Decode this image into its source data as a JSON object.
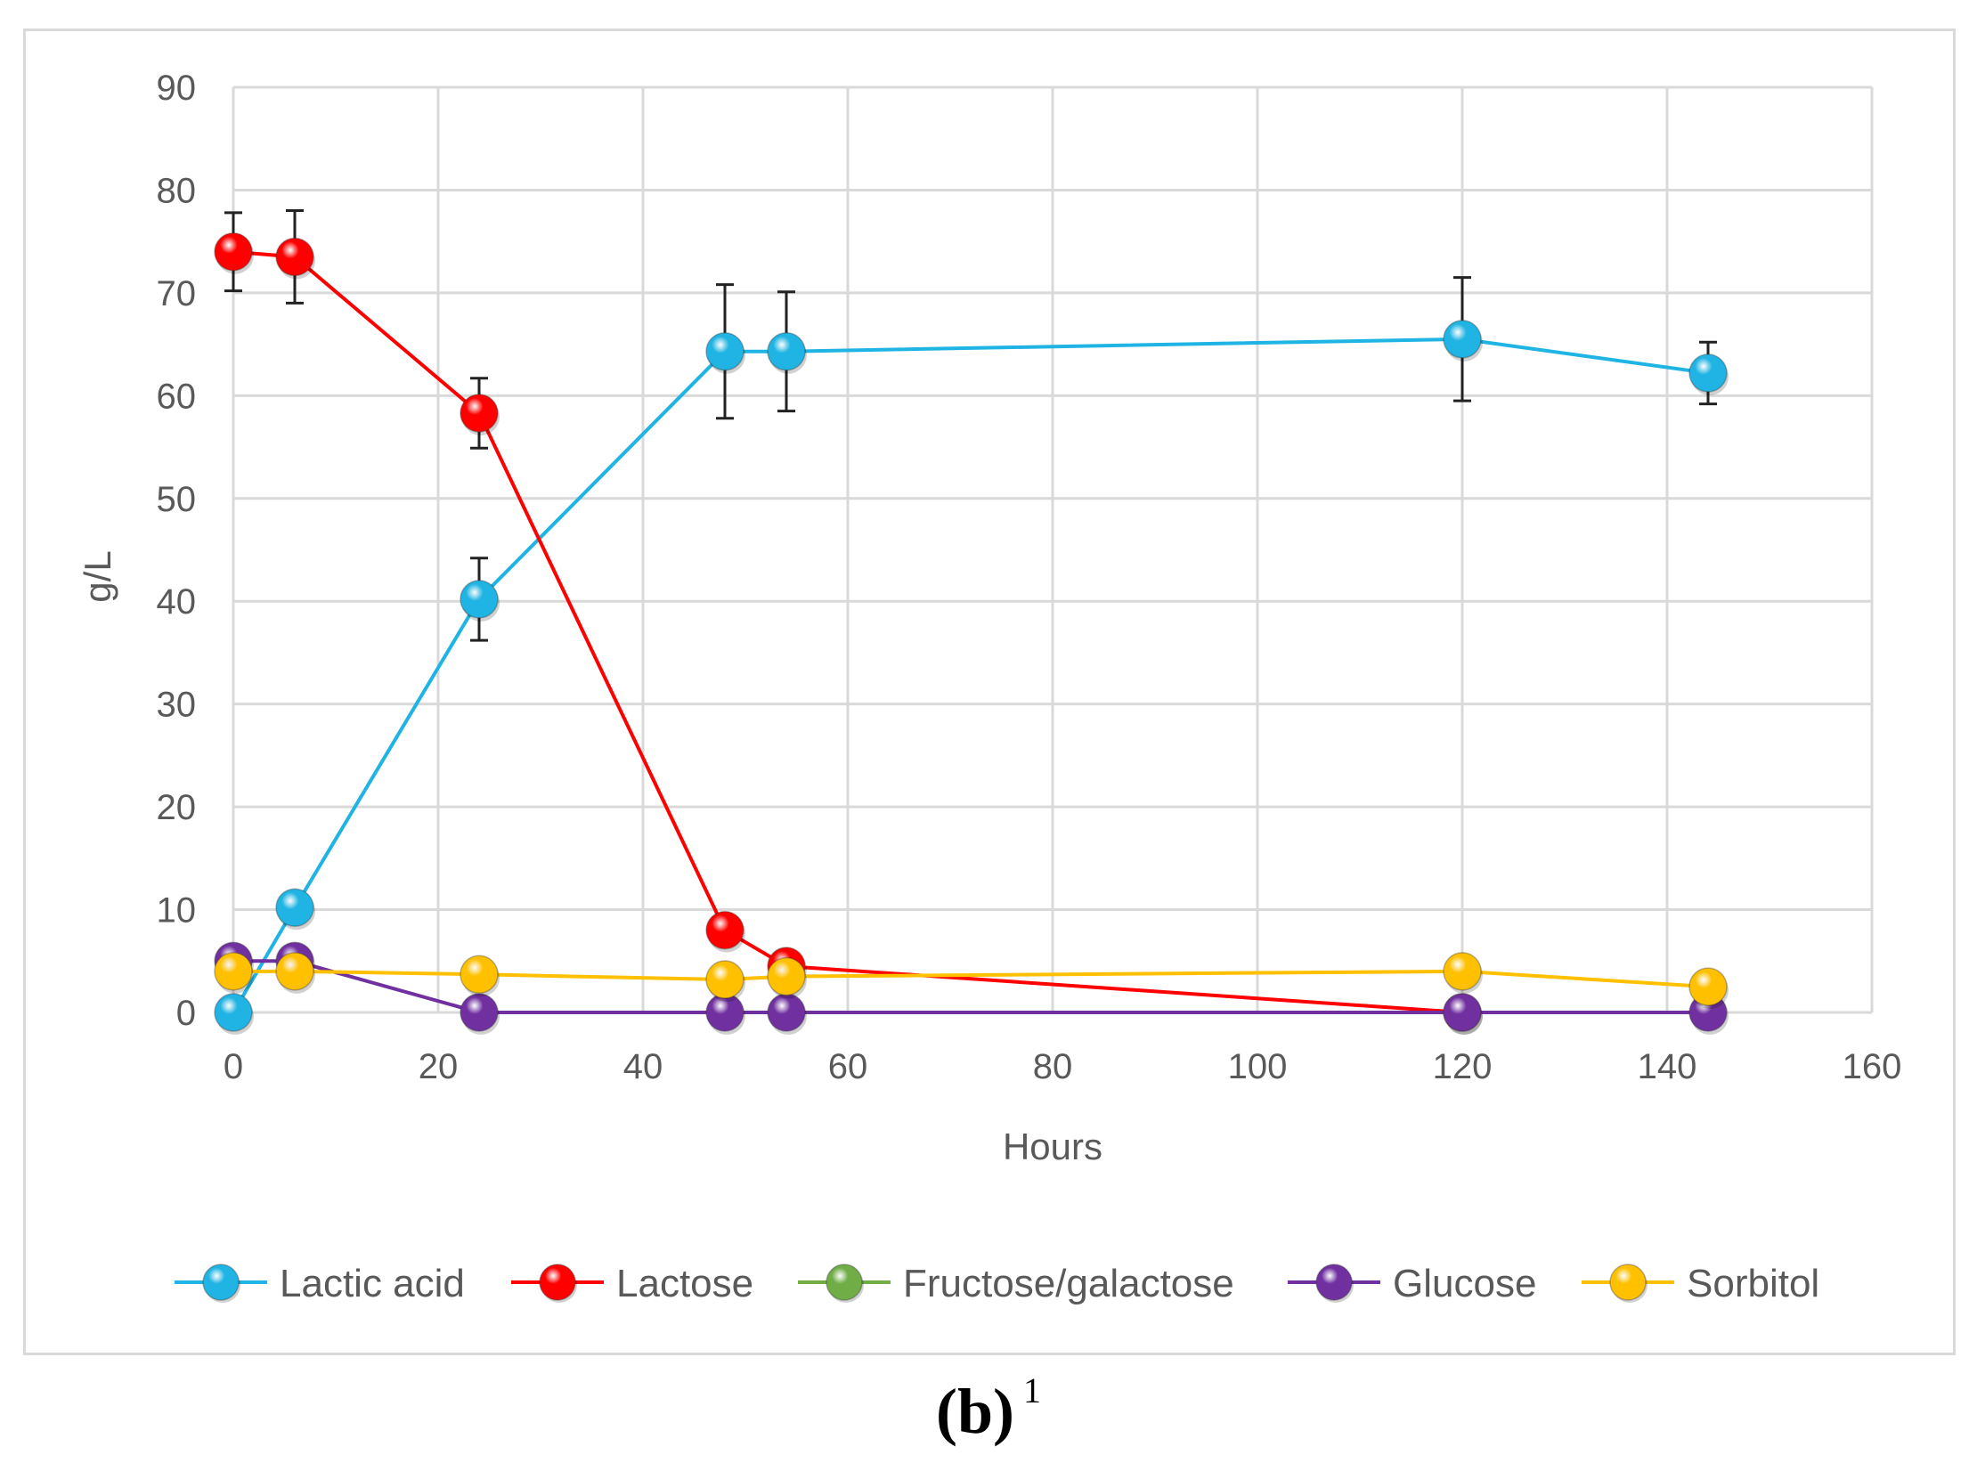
{
  "chart_data": {
    "type": "line",
    "title": "",
    "xlabel": "Hours",
    "ylabel": "g/L",
    "xlim": [
      0,
      160
    ],
    "ylim": [
      0,
      90
    ],
    "xticks": [
      0,
      20,
      40,
      60,
      80,
      100,
      120,
      140,
      160
    ],
    "yticks": [
      0,
      10,
      20,
      30,
      40,
      50,
      60,
      70,
      80,
      90
    ],
    "grid": true,
    "legend_position": "bottom",
    "series": [
      {
        "name": "Lactic acid",
        "color": "#1fb4e3",
        "x": [
          0,
          6,
          24,
          48,
          54,
          120,
          144
        ],
        "values": [
          0,
          10.2,
          40.2,
          64.3,
          64.3,
          65.5,
          62.2
        ],
        "errors": [
          null,
          null,
          4,
          6.5,
          5.8,
          6,
          3
        ]
      },
      {
        "name": "Lactose",
        "color": "#ff0000",
        "x": [
          0,
          6,
          24,
          48,
          54,
          120
        ],
        "values": [
          74,
          73.5,
          58.3,
          8,
          4.5,
          0
        ],
        "errors": [
          3.8,
          4.5,
          3.4,
          null,
          null,
          null
        ]
      },
      {
        "name": "Fructose/galactose",
        "color": "#70ad47",
        "x": [],
        "values": [],
        "errors": []
      },
      {
        "name": "Glucose",
        "color": "#7030a0",
        "x": [
          0,
          6,
          24,
          48,
          54,
          120,
          144
        ],
        "values": [
          5,
          5,
          0,
          0,
          0,
          0,
          0
        ],
        "errors": [
          null,
          null,
          null,
          null,
          null,
          null,
          null
        ]
      },
      {
        "name": "Sorbitol",
        "color": "#ffc000",
        "x": [
          0,
          6,
          24,
          48,
          54,
          120,
          144
        ],
        "values": [
          4,
          4,
          3.7,
          3.2,
          3.5,
          4,
          2.5
        ],
        "errors": [
          null,
          null,
          null,
          null,
          null,
          null,
          null
        ]
      }
    ]
  },
  "caption": {
    "letter": "(b)",
    "superscript": "1"
  }
}
